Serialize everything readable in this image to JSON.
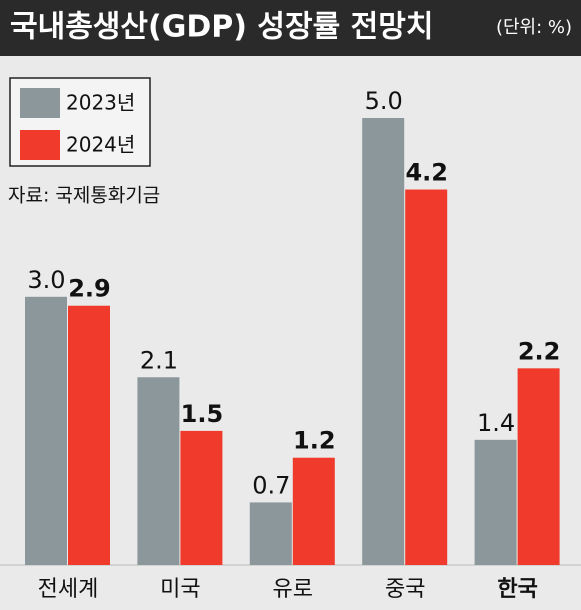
{
  "chart_data": {
    "type": "bar",
    "title": "국내총생산(GDP) 성장률 전망치",
    "unit_note": "(단위: %)",
    "source": "자료: 국제통화기금",
    "categories": [
      "전세계",
      "미국",
      "유로",
      "중국",
      "한국"
    ],
    "highlight_index": 4,
    "series": [
      {
        "name": "2023년",
        "color": "#8b979b",
        "values": [
          3.0,
          2.1,
          0.7,
          5.0,
          1.4
        ],
        "value_labels": [
          "3.0",
          "2.1",
          "0.7",
          "5.0",
          "1.4"
        ],
        "bold_labels": false
      },
      {
        "name": "2024년",
        "color": "#f03b2c",
        "values": [
          2.9,
          1.5,
          1.2,
          4.2,
          2.2
        ],
        "bold_labels": true
      }
    ]
  }
}
